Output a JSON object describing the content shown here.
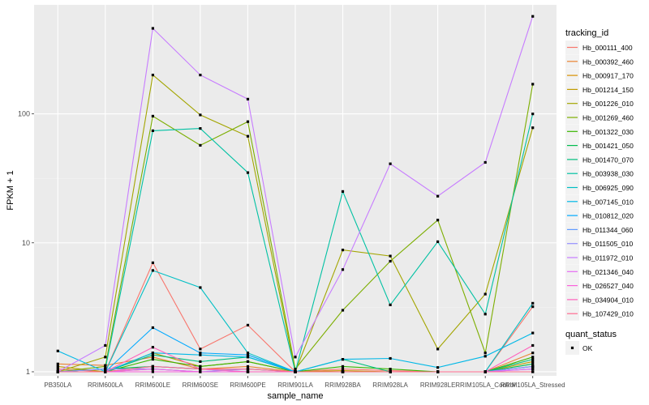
{
  "chart_data": {
    "type": "line",
    "title": "",
    "xlabel": "sample_name",
    "ylabel": "FPKM + 1",
    "y_scale": "log10",
    "ylim": [
      0.93,
      700
    ],
    "yticks": [
      1,
      10,
      100
    ],
    "ytick_labels": [
      "1",
      "10",
      "100"
    ],
    "categories": [
      "PB350LA",
      "RRIM600LA",
      "RRIM600LE",
      "RRIM600SE",
      "RRIM600PE",
      "RRIM901LA",
      "RRIM928BA",
      "RRIM928LA",
      "RRIM928LE",
      "RRIM105LA_Control",
      "RRIM105LA_Stressed"
    ],
    "legend_title": "tracking_id",
    "legend_position": "right",
    "shape_legend_title": "quant_status",
    "shape_legend_items": [
      "OK"
    ],
    "series": [
      {
        "name": "Hb_000111_400",
        "color": "#F8766D",
        "values": [
          1.05,
          1.0,
          7.0,
          1.5,
          2.3,
          1.0,
          1.05,
          1.02,
          1.0,
          1.0,
          3.2
        ]
      },
      {
        "name": "Hb_000392_460",
        "color": "#EA8331",
        "values": [
          1.15,
          1.12,
          1.3,
          1.05,
          1.1,
          1.0,
          1.0,
          1.0,
          1.0,
          1.0,
          1.4
        ]
      },
      {
        "name": "Hb_000917_170",
        "color": "#D89000",
        "values": [
          1.0,
          1.0,
          1.05,
          1.0,
          1.0,
          1.0,
          1.0,
          1.0,
          1.0,
          1.0,
          1.1
        ]
      },
      {
        "name": "Hb_001214_150",
        "color": "#C09B00",
        "values": [
          1.1,
          1.0,
          1.4,
          1.1,
          1.2,
          1.0,
          1.02,
          1.0,
          1.0,
          1.0,
          1.2
        ]
      },
      {
        "name": "Hb_001226_010",
        "color": "#A3A500",
        "values": [
          1.0,
          1.3,
          200.0,
          98.0,
          67.0,
          1.0,
          8.8,
          7.9,
          1.5,
          4.0,
          78.0
        ]
      },
      {
        "name": "Hb_001269_460",
        "color": "#7CAE00",
        "values": [
          1.0,
          1.1,
          96.0,
          57.0,
          87.0,
          1.05,
          3.0,
          7.2,
          15.0,
          1.4,
          170.0
        ]
      },
      {
        "name": "Hb_001322_030",
        "color": "#39B600",
        "values": [
          1.0,
          1.0,
          1.25,
          1.1,
          1.2,
          1.0,
          1.1,
          1.05,
          1.0,
          1.0,
          1.3
        ]
      },
      {
        "name": "Hb_001421_050",
        "color": "#00BB4E",
        "values": [
          1.0,
          1.05,
          1.1,
          1.05,
          1.05,
          1.0,
          1.0,
          1.0,
          1.0,
          1.0,
          1.15
        ]
      },
      {
        "name": "Hb_001470_070",
        "color": "#00BF7D",
        "values": [
          1.0,
          1.0,
          1.35,
          1.2,
          1.3,
          1.0,
          1.25,
          1.0,
          1.0,
          1.0,
          1.25
        ]
      },
      {
        "name": "Hb_003938_030",
        "color": "#00C1A3",
        "values": [
          1.0,
          1.05,
          74.0,
          77.0,
          35.0,
          1.0,
          25.0,
          3.3,
          10.2,
          2.8,
          100.0
        ]
      },
      {
        "name": "Hb_006925_090",
        "color": "#00BFC4",
        "values": [
          1.0,
          1.0,
          6.1,
          4.5,
          1.4,
          1.0,
          1.0,
          1.0,
          1.0,
          1.0,
          3.4
        ]
      },
      {
        "name": "Hb_007145_010",
        "color": "#00B8E7",
        "values": [
          1.45,
          1.0,
          1.4,
          1.35,
          1.3,
          1.0,
          1.25,
          1.27,
          1.08,
          1.32,
          2.0
        ]
      },
      {
        "name": "Hb_010812_020",
        "color": "#00A9FF",
        "values": [
          1.0,
          1.0,
          2.2,
          1.4,
          1.35,
          1.0,
          1.0,
          1.0,
          1.0,
          1.0,
          1.1
        ]
      },
      {
        "name": "Hb_011344_060",
        "color": "#619CFF",
        "values": [
          1.0,
          1.0,
          1.1,
          1.05,
          1.0,
          1.0,
          1.0,
          1.0,
          1.0,
          1.0,
          1.05
        ]
      },
      {
        "name": "Hb_011505_010",
        "color": "#9590FF",
        "values": [
          1.0,
          1.05,
          1.05,
          1.0,
          1.05,
          1.0,
          1.0,
          1.0,
          1.0,
          1.0,
          1.1
        ]
      },
      {
        "name": "Hb_011972_010",
        "color": "#C77CFF",
        "values": [
          1.0,
          1.6,
          460.0,
          200.0,
          130.0,
          1.3,
          6.2,
          41.0,
          23.0,
          42.0,
          570.0
        ]
      },
      {
        "name": "Hb_021346_040",
        "color": "#E76BF3",
        "values": [
          1.0,
          1.0,
          1.05,
          1.0,
          1.0,
          1.0,
          1.0,
          1.0,
          1.0,
          1.0,
          1.05
        ]
      },
      {
        "name": "Hb_026527_040",
        "color": "#FA62DB",
        "values": [
          1.0,
          1.0,
          1.0,
          1.0,
          1.0,
          1.0,
          1.0,
          1.0,
          1.0,
          1.0,
          1.0
        ]
      },
      {
        "name": "Hb_034904_010",
        "color": "#FF62BC",
        "values": [
          1.0,
          1.0,
          1.55,
          1.05,
          1.0,
          1.0,
          1.0,
          1.0,
          1.0,
          1.0,
          1.6
        ]
      },
      {
        "name": "Hb_107429_010",
        "color": "#FF6C91",
        "values": [
          1.0,
          1.0,
          1.1,
          1.05,
          1.05,
          1.0,
          1.0,
          1.0,
          1.0,
          1.0,
          1.0
        ]
      }
    ]
  }
}
